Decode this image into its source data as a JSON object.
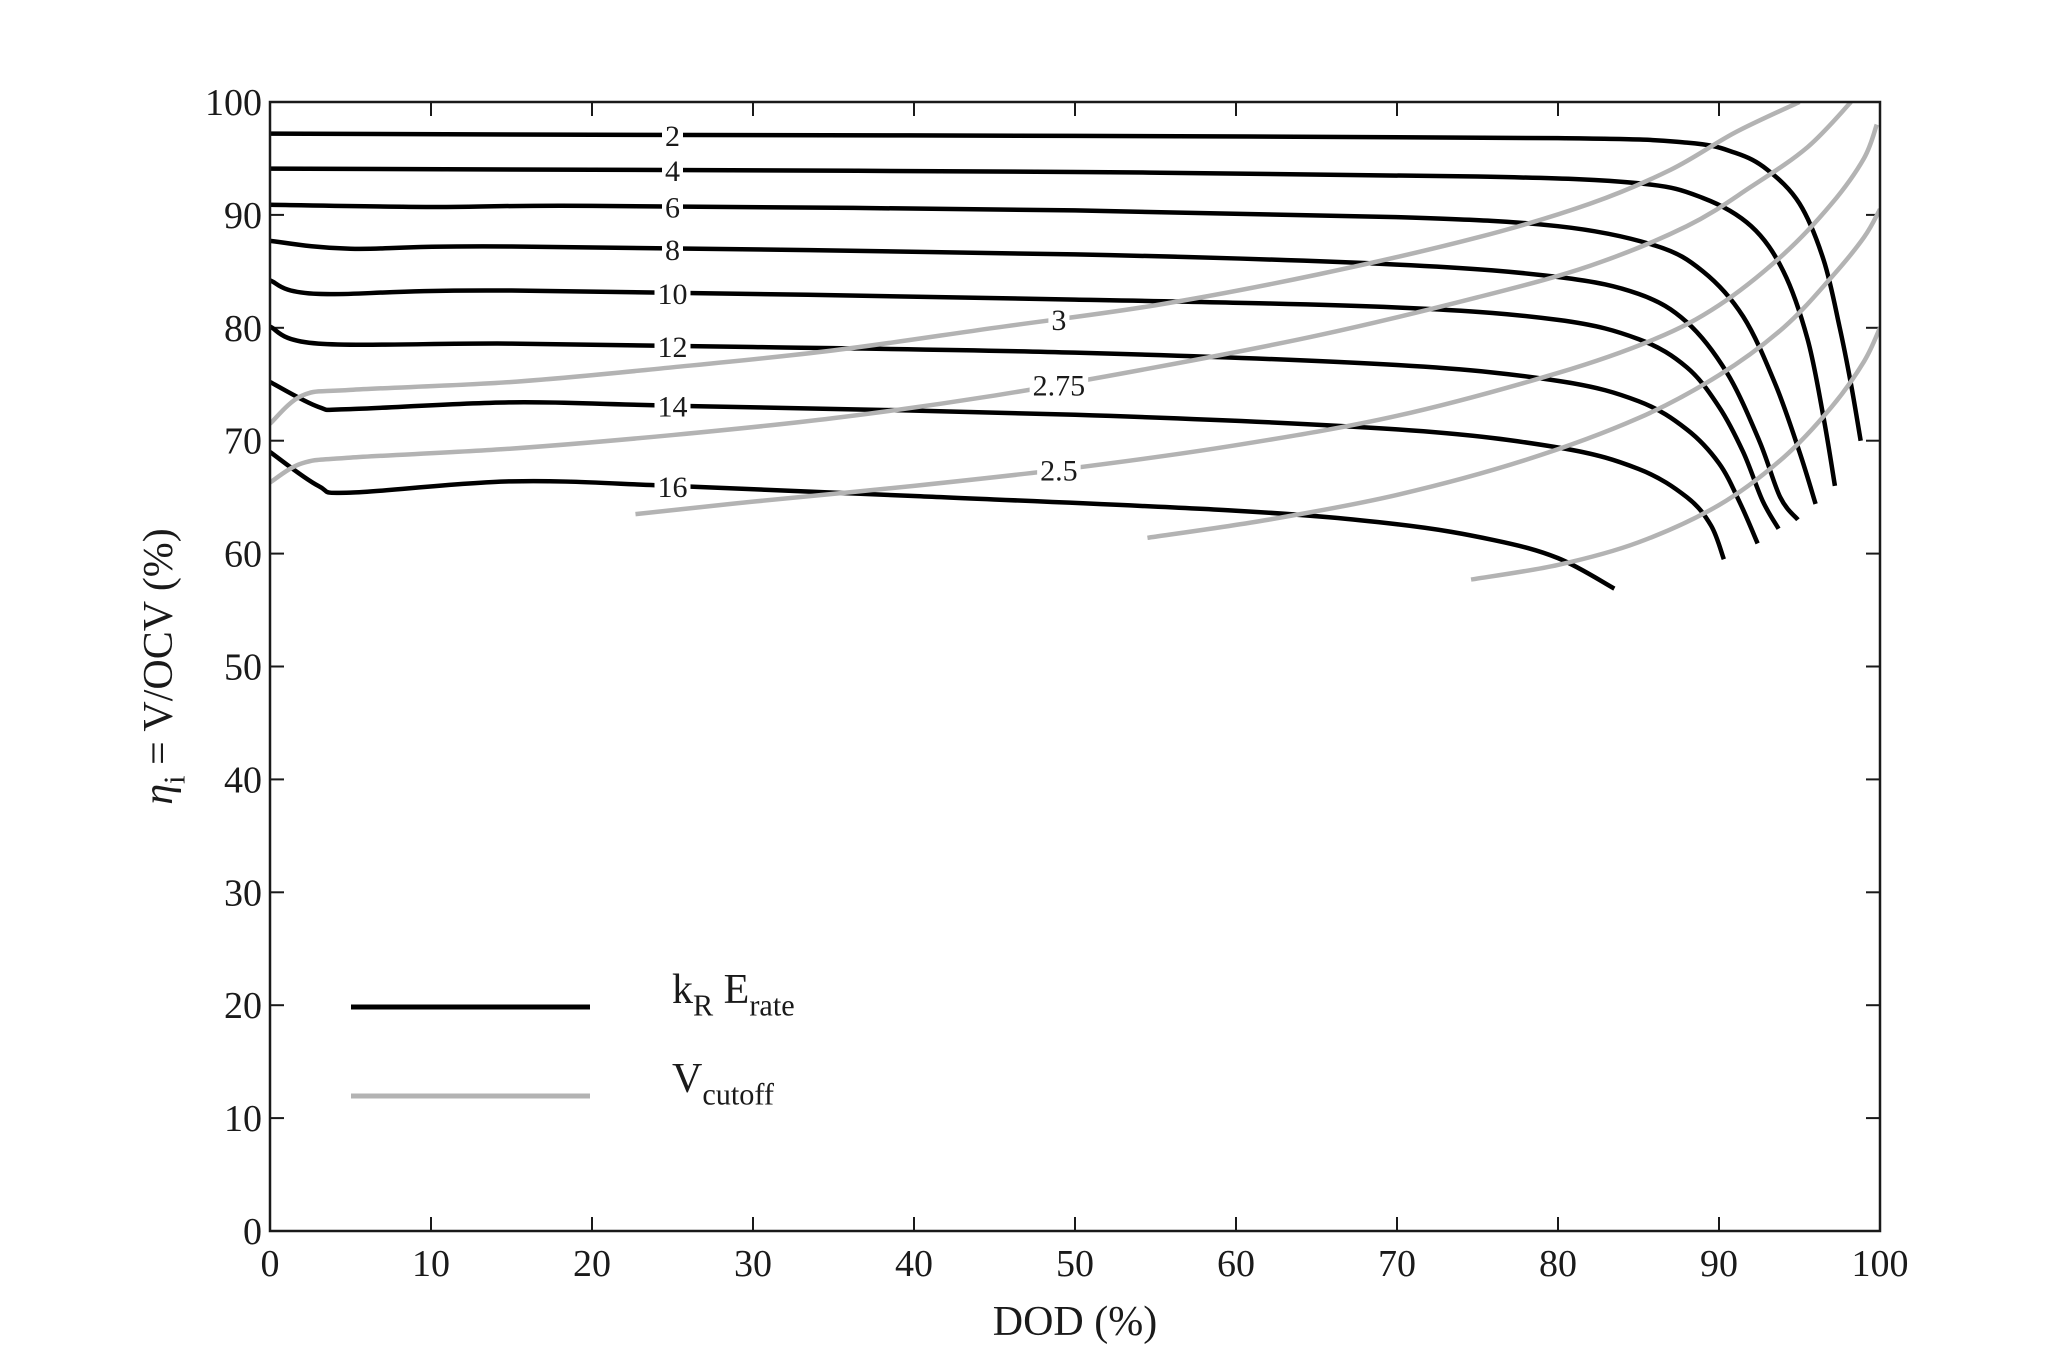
{
  "chart_data": {
    "type": "line",
    "xlabel": "DOD (%)",
    "ylabel_parts": [
      {
        "text": "η",
        "italic": true
      },
      {
        "text": "i",
        "sub": true
      },
      {
        "text": " = V/OCV (%)"
      }
    ],
    "xlim": [
      0,
      100
    ],
    "ylim": [
      0,
      100
    ],
    "xticks": [
      0,
      10,
      20,
      30,
      40,
      50,
      60,
      70,
      80,
      90,
      100
    ],
    "yticks": [
      0,
      10,
      20,
      30,
      40,
      50,
      60,
      70,
      80,
      90,
      100
    ],
    "grid": false,
    "legend": "lower left",
    "legend_entries": [
      {
        "color": "#000000",
        "parts": [
          {
            "text": "k"
          },
          {
            "text": "R",
            "sub": true
          },
          {
            "text": " E"
          },
          {
            "text": "rate",
            "sub": true
          }
        ]
      },
      {
        "color": "#b3b3b3",
        "parts": [
          {
            "text": "V"
          },
          {
            "text": "cutoff",
            "sub": true
          }
        ]
      }
    ],
    "series": [
      {
        "color": "#000000",
        "label": "2",
        "x": [
          0,
          20,
          50,
          80,
          88,
          91,
          93,
          95,
          96.5,
          97.5,
          98.2,
          98.8
        ],
        "values": [
          97.2,
          97.1,
          97,
          96.8,
          96.4,
          95.5,
          94,
          91,
          86,
          80,
          75,
          70
        ]
      },
      {
        "color": "#000000",
        "label": "4",
        "x": [
          0,
          20,
          50,
          75,
          85,
          89,
          92,
          94,
          95.5,
          96.5,
          97.2
        ],
        "values": [
          94.1,
          94,
          93.8,
          93.4,
          92.8,
          91.5,
          89,
          85,
          79,
          72,
          66
        ]
      },
      {
        "color": "#000000",
        "label": "6",
        "x": [
          0,
          10,
          20,
          50,
          70,
          80,
          86,
          89,
          91.5,
          93.5,
          95,
          96
        ],
        "values": [
          90.9,
          90.7,
          90.8,
          90.4,
          89.8,
          89,
          87.3,
          85,
          81,
          75,
          69,
          64.4
        ]
      },
      {
        "color": "#000000",
        "label": "8",
        "x": [
          0,
          5,
          15,
          50,
          70,
          80,
          85,
          88,
          90.5,
          92.5,
          93.8,
          94.9
        ],
        "values": [
          87.7,
          87,
          87.2,
          86.5,
          85.6,
          84.5,
          83,
          80.5,
          76,
          70,
          65,
          63
        ]
      },
      {
        "color": "#000000",
        "label": "10",
        "x": [
          0,
          3,
          15,
          50,
          70,
          80,
          85,
          88,
          90,
          91.5,
          92.7,
          93.7
        ],
        "values": [
          84.2,
          83,
          83.3,
          82.5,
          81.8,
          80.7,
          79,
          76.5,
          73,
          69,
          64.7,
          62.2
        ]
      },
      {
        "color": "#000000",
        "label": "12",
        "x": [
          0,
          3,
          15,
          30,
          50,
          70,
          80,
          85,
          88,
          90,
          91.3,
          92.4
        ],
        "values": [
          80.1,
          78.6,
          78.6,
          78.3,
          77.8,
          76.7,
          75.3,
          73.5,
          71,
          68,
          64.5,
          60.9
        ]
      },
      {
        "color": "#000000",
        "label": "14",
        "x": [
          0,
          3,
          5,
          15,
          25,
          50,
          70,
          80,
          85,
          88,
          89.5,
          90.3
        ],
        "values": [
          75.2,
          73,
          72.8,
          73.4,
          73.1,
          72.3,
          71,
          69.4,
          67.5,
          65,
          62.5,
          59.5
        ]
      },
      {
        "color": "#000000",
        "label": "16",
        "x": [
          0,
          3,
          5,
          15,
          25,
          40,
          60,
          70,
          76,
          80,
          83.5
        ],
        "values": [
          69,
          66,
          65.4,
          66.4,
          66,
          65.1,
          63.8,
          62.6,
          61.2,
          59.6,
          56.9
        ]
      },
      {
        "color": "#b3b3b3",
        "label": "3",
        "x": [
          0,
          2,
          5,
          15,
          25,
          35,
          45,
          55,
          65,
          75,
          82,
          87,
          91,
          95
        ],
        "values": [
          71.5,
          74,
          74.5,
          75.2,
          76.5,
          78,
          80,
          82,
          84.7,
          88,
          91,
          94,
          97.3,
          100
        ]
      },
      {
        "color": "#b3b3b3",
        "label": "2.75",
        "x": [
          0,
          2,
          5,
          15,
          25,
          35,
          45,
          55,
          65,
          75,
          82,
          88,
          92,
          95.5,
          98.2
        ],
        "values": [
          66.3,
          68,
          68.5,
          69.3,
          70.5,
          72,
          74,
          76.5,
          79.3,
          82.7,
          85.5,
          89,
          92.5,
          96,
          100
        ]
      },
      {
        "color": "#b3b3b3",
        "label": "2.5",
        "x": [
          22.7,
          30,
          40,
          50,
          60,
          70,
          80,
          86,
          90,
          94,
          97,
          99,
          99.8
        ],
        "values": [
          63.5,
          64.6,
          66,
          67.6,
          69.6,
          72.2,
          76,
          79,
          82,
          86.5,
          91,
          95,
          98
        ]
      },
      {
        "color": "#b3b3b3",
        "x": [
          54.5,
          62,
          70,
          78,
          85,
          90,
          94,
          97,
          99,
          100
        ],
        "values": [
          61.4,
          63,
          65.2,
          68.3,
          72,
          75.8,
          80,
          84.5,
          88,
          90.5
        ]
      },
      {
        "color": "#b3b3b3",
        "x": [
          74.6,
          80,
          85,
          90,
          94,
          97,
          99,
          100
        ],
        "values": [
          57.7,
          59,
          61,
          64.3,
          68.5,
          73,
          77,
          80
        ]
      }
    ]
  }
}
